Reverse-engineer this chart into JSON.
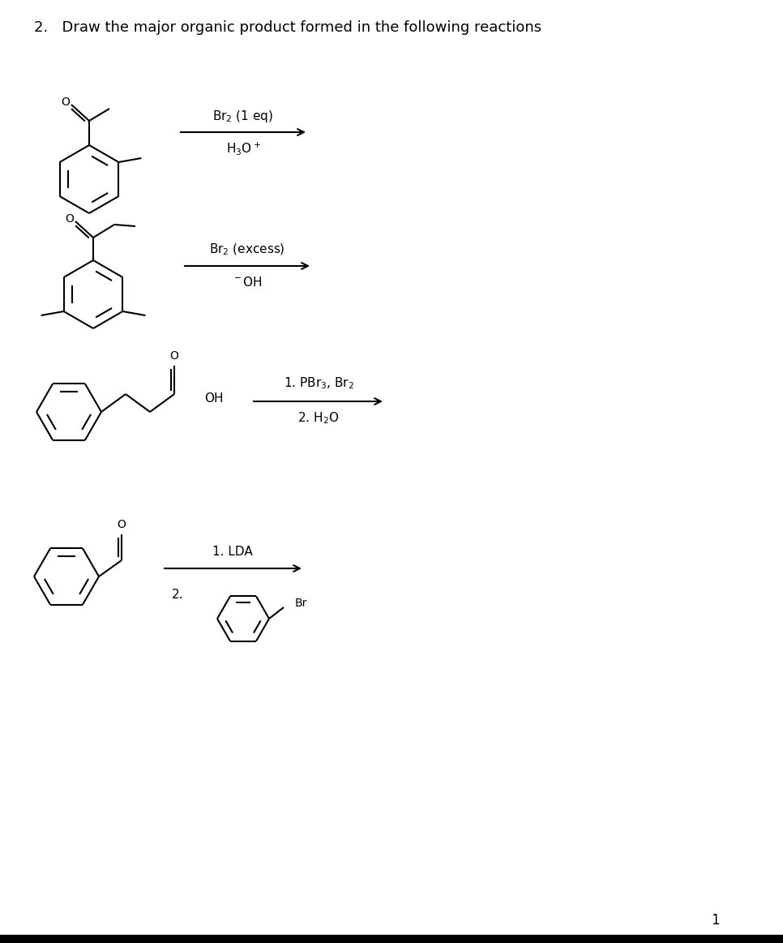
{
  "title": "2.   Draw the major organic product formed in the following reactions",
  "background": "#ffffff",
  "lw": 1.5,
  "page_number": "1",
  "rxn1_r1": "Br$_2$ (1 eq)",
  "rxn1_r2": "H$_3$O$^+$",
  "rxn2_r1": "Br$_2$ (excess)",
  "rxn2_r2": "$^-$OH",
  "rxn3_r1": "1. PBr$_3$, Br$_2$",
  "rxn3_r2": "2. H$_2$O",
  "rxn4_r1": "1. LDA",
  "rxn4_r2": "2.",
  "font_size_label": 11,
  "font_size_atom": 10,
  "font_size_title": 13
}
